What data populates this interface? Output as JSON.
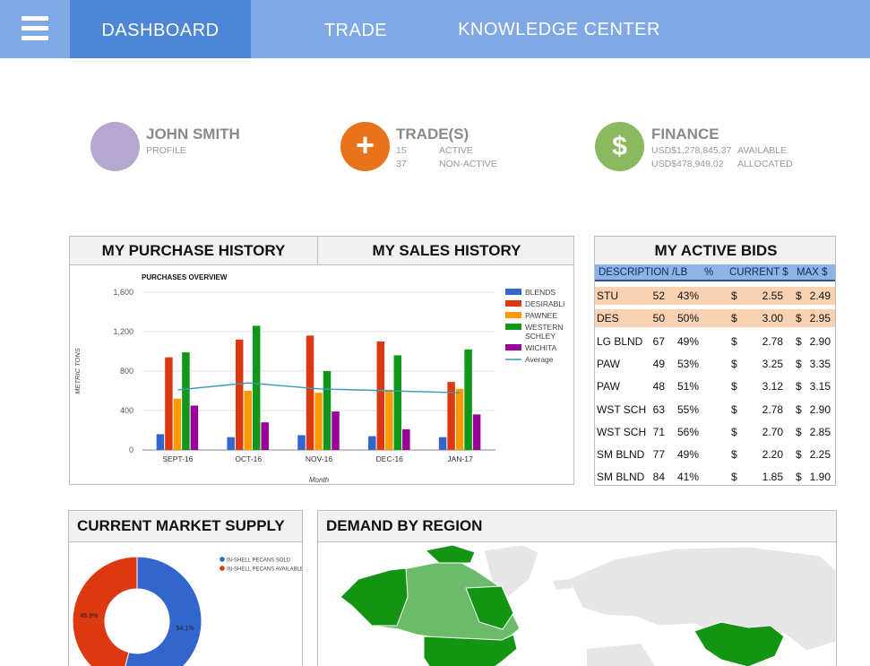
{
  "nav": {
    "items": [
      {
        "label": "DASHBOARD",
        "active": true
      },
      {
        "label": "TRADE",
        "active": false
      },
      {
        "label": "KNOWLEDGE CENTER",
        "active": false
      }
    ]
  },
  "profile": {
    "name": "JOHN SMITH",
    "sub": "PROFILE",
    "avatar_color": "#b6a7cf"
  },
  "trades": {
    "title": "TRADE(S)",
    "icon": "plus-icon",
    "icon_color": "#e8731a",
    "rows": [
      {
        "count": "15",
        "label": "ACTIVE"
      },
      {
        "count": "37",
        "label": "NON-ACTIVE"
      }
    ]
  },
  "finance": {
    "title": "FINANCE",
    "icon": "dollar-icon",
    "icon_color": "#8ab960",
    "rows": [
      {
        "amount": "USD$1,278,845.37",
        "label": "AVAILABLE"
      },
      {
        "amount": "USD$478,949.02",
        "label": "ALLOCATED"
      }
    ]
  },
  "history": {
    "tab_purchase": "MY PURCHASE HISTORY",
    "tab_sales": "MY SALES HISTORY",
    "active_tab": "purchase"
  },
  "chart_data": {
    "type": "bar",
    "title": "PURCHASES OVERVIEW",
    "xlabel": "Month",
    "ylabel": "METRIC TONS",
    "ylim": [
      0,
      1600
    ],
    "yticks": [
      "0",
      "400",
      "800",
      "1,200",
      "1,600"
    ],
    "categories": [
      "SEPT-16",
      "OCT-16",
      "NOV-16",
      "DEC-16",
      "JAN-17"
    ],
    "series": [
      {
        "name": "BLENDS",
        "color": "#3366cc",
        "values": [
          160,
          130,
          150,
          140,
          130
        ]
      },
      {
        "name": "DESIRABLI",
        "color": "#dc3912",
        "values": [
          940,
          1120,
          1160,
          1100,
          690
        ]
      },
      {
        "name": "PAWNEE",
        "color": "#ff9900",
        "values": [
          520,
          600,
          580,
          610,
          620
        ]
      },
      {
        "name": "WESTERN SCHLEY",
        "color": "#109618",
        "values": [
          990,
          1260,
          800,
          960,
          1020
        ]
      },
      {
        "name": "WICHITA",
        "color": "#990099",
        "values": [
          450,
          280,
          390,
          210,
          360
        ]
      }
    ],
    "average": {
      "name": "Average",
      "color": "#3a9ab8",
      "values": [
        610,
        680,
        620,
        600,
        580
      ]
    },
    "grid": true,
    "legend": "right"
  },
  "bids": {
    "title": "MY ACTIVE BIDS",
    "columns": [
      "DESCRIPTION",
      "/LB",
      "%",
      "CURRENT $",
      "MAX $"
    ],
    "rows": [
      {
        "desc": "STU",
        "lb": "52",
        "pct": "43%",
        "cur_sym": "$",
        "cur": "2.55",
        "max_sym": "$",
        "max": "2.49",
        "highlight": true
      },
      {
        "desc": "DES",
        "lb": "50",
        "pct": "50%",
        "cur_sym": "$",
        "cur": "3.00",
        "max_sym": "$",
        "max": "2.95",
        "highlight": true
      },
      {
        "desc": "LG BLND",
        "lb": "67",
        "pct": "49%",
        "cur_sym": "$",
        "cur": "2.78",
        "max_sym": "$",
        "max": "2.90",
        "highlight": false
      },
      {
        "desc": "PAW",
        "lb": "49",
        "pct": "53%",
        "cur_sym": "$",
        "cur": "3.25",
        "max_sym": "$",
        "max": "3.35",
        "highlight": false
      },
      {
        "desc": "PAW",
        "lb": "48",
        "pct": "51%",
        "cur_sym": "$",
        "cur": "3.12",
        "max_sym": "$",
        "max": "3.15",
        "highlight": false
      },
      {
        "desc": "WST SCH",
        "lb": "63",
        "pct": "55%",
        "cur_sym": "$",
        "cur": "2.78",
        "max_sym": "$",
        "max": "2.90",
        "highlight": false
      },
      {
        "desc": "WST SCH",
        "lb": "71",
        "pct": "56%",
        "cur_sym": "$",
        "cur": "2.70",
        "max_sym": "$",
        "max": "2.85",
        "highlight": false
      },
      {
        "desc": "SM BLND",
        "lb": "77",
        "pct": "49%",
        "cur_sym": "$",
        "cur": "2.20",
        "max_sym": "$",
        "max": "2.25",
        "highlight": false
      },
      {
        "desc": "SM BLND",
        "lb": "84",
        "pct": "41%",
        "cur_sym": "$",
        "cur": "1.85",
        "max_sym": "$",
        "max": "1.90",
        "highlight": false
      }
    ]
  },
  "supply": {
    "title": "CURRENT MARKET SUPPLY",
    "legend": [
      {
        "label": "IN-SHELL PECANS SOLD",
        "color": "#3366cc"
      },
      {
        "label": "IN-SHELL PECANS AVAILABLE",
        "color": "#dc3912"
      }
    ],
    "slices": [
      {
        "label": "54.1%",
        "value": 54.1,
        "color": "#3366cc"
      },
      {
        "label": "45.9%",
        "value": 45.9,
        "color": "#dc3912"
      }
    ]
  },
  "demand": {
    "title": "DEMAND BY REGION",
    "high_color": "#139413",
    "mid_color": "#6bbb6b",
    "base_color": "#e6e6e6"
  }
}
